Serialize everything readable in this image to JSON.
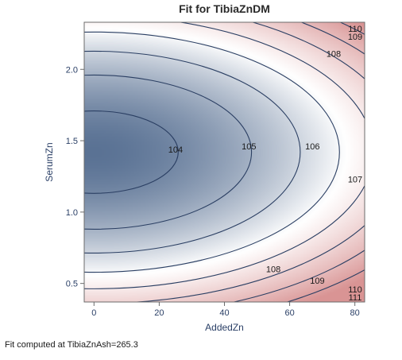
{
  "chart_data": {
    "type": "contour",
    "title": "Fit for TibiaZnDM",
    "xlabel": "AddedZn",
    "ylabel": "SerumZn",
    "xlim": [
      -3,
      83
    ],
    "ylim": [
      0.37,
      2.33
    ],
    "x_ticks": [
      0,
      20,
      40,
      60,
      80
    ],
    "y_ticks": [
      0.5,
      1.0,
      1.5,
      2.0
    ],
    "x_tick_labels": [
      "0",
      "20",
      "40",
      "60",
      "80"
    ],
    "y_tick_labels": [
      "0.5",
      "1.0",
      "1.5",
      "2.0"
    ],
    "surface_min": {
      "x": 0,
      "y": 1.42,
      "z": 103.6
    },
    "contour_levels": [
      104,
      105,
      106,
      107,
      108,
      109,
      110,
      111
    ],
    "contour_labels": [
      {
        "level": 104,
        "text": "104",
        "x": 25,
        "y": 1.44
      },
      {
        "level": 105,
        "text": "105",
        "x": 47.5,
        "y": 1.46
      },
      {
        "level": 106,
        "text": "106",
        "x": 67,
        "y": 1.46
      },
      {
        "level": 107,
        "text": "107",
        "x": 85.5,
        "y": 1.23
      },
      {
        "level": 108,
        "text": "108",
        "x": 73.5,
        "y": 2.11
      },
      {
        "level": 108,
        "text": "108",
        "x": 55,
        "y": 0.6
      },
      {
        "level": 109,
        "text": "109",
        "x": 81.5,
        "y": 2.23
      },
      {
        "level": 109,
        "text": "109",
        "x": 68.5,
        "y": 0.52
      },
      {
        "level": 110,
        "text": "110",
        "x": 92,
        "y": 2.3
      },
      {
        "level": 110,
        "text": "110",
        "x": 83,
        "y": 0.46
      },
      {
        "level": 111,
        "text": "111",
        "x": 95,
        "y": 0.4
      }
    ],
    "colors": {
      "low": "#5a7294",
      "mid": "#ffffff",
      "high": "#d99494",
      "contour_line": "#2b3f63",
      "axis": "#6b6b6b"
    },
    "grid": false,
    "legend": false
  },
  "footnote": "Fit computed at TibiaZnAsh=265.3"
}
